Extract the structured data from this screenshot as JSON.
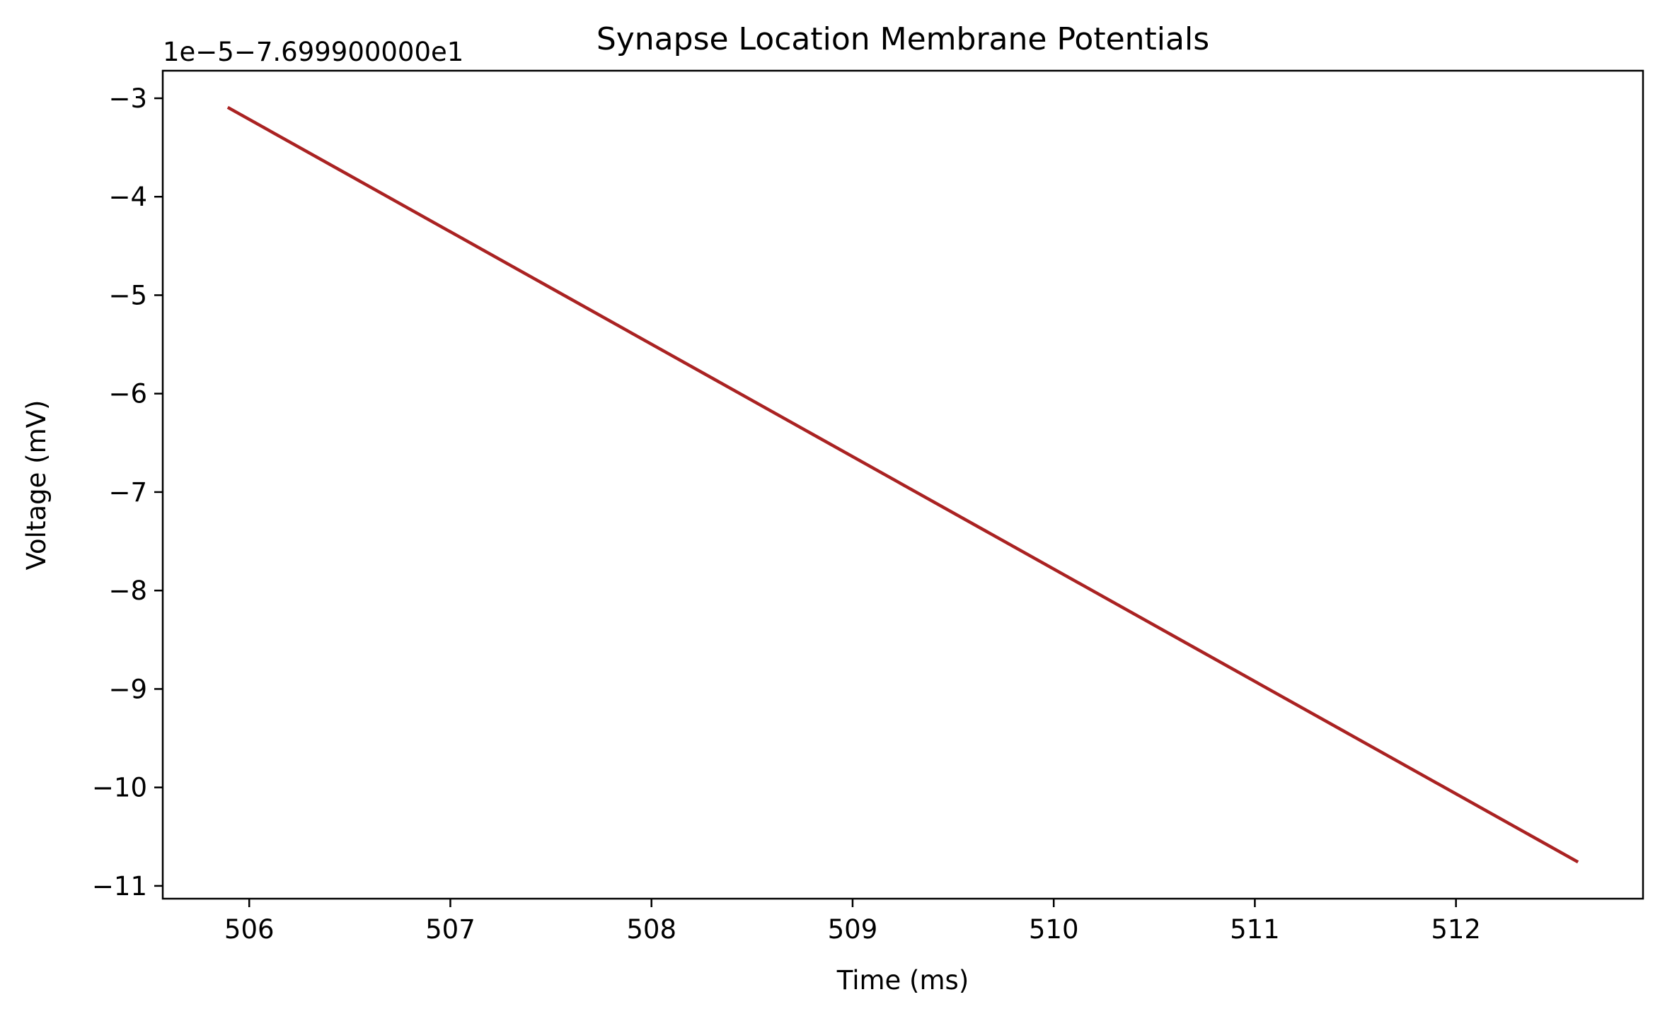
{
  "chart_data": {
    "type": "line",
    "title": "Synapse Location Membrane Potentials",
    "xlabel": "Time (ms)",
    "ylabel": "Voltage (mV)",
    "offset_text": "1e−5−7.699900000e1",
    "xlim": [
      505.57,
      512.93
    ],
    "ylim": [
      -11.13,
      -2.72
    ],
    "xticks": [
      506,
      507,
      508,
      509,
      510,
      511,
      512
    ],
    "xtick_labels": [
      "506",
      "507",
      "508",
      "509",
      "510",
      "511",
      "512"
    ],
    "yticks": [
      -3,
      -4,
      -5,
      -6,
      -7,
      -8,
      -9,
      -10,
      -11
    ],
    "ytick_labels": [
      "−3",
      "−4",
      "−5",
      "−6",
      "−7",
      "−8",
      "−9",
      "−10",
      "−11"
    ],
    "grid": false,
    "series": [
      {
        "color": "#aa2222",
        "x": [
          505.9,
          512.6
        ],
        "y": [
          -3.1,
          -10.75
        ]
      }
    ]
  }
}
